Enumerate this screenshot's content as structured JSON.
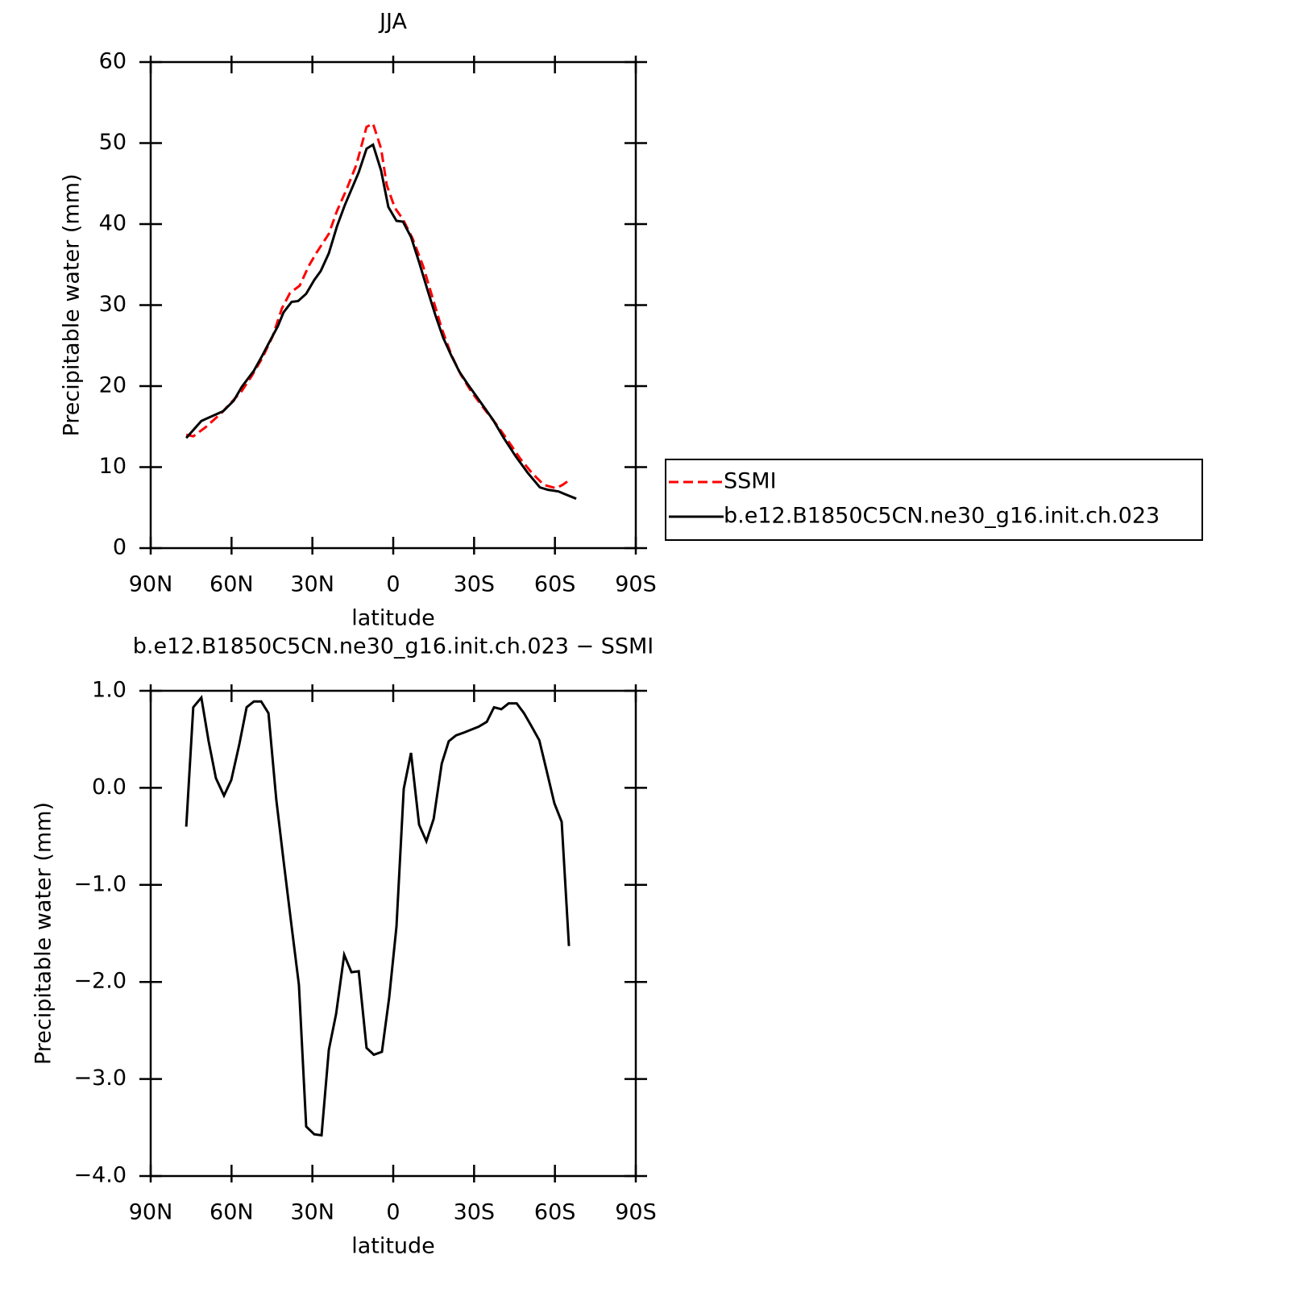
{
  "chart_data": [
    {
      "type": "line",
      "title": "JJA",
      "xlabel": "latitude",
      "ylabel": "Precipitable water (mm)",
      "xlim": [
        90,
        -90
      ],
      "xticks": [
        {
          "value": 90,
          "label": "90N"
        },
        {
          "value": 60,
          "label": "60N"
        },
        {
          "value": 30,
          "label": "30N"
        },
        0,
        {
          "value": -30,
          "label": "30S"
        },
        {
          "value": -60,
          "label": "60S"
        },
        {
          "value": -90,
          "label": "90S"
        }
      ],
      "ylim": [
        0,
        60
      ],
      "yticks": [
        0,
        10,
        20,
        30,
        40,
        50,
        60
      ],
      "legend": "right",
      "series": [
        {
          "name": "SSMI",
          "color": "#ff0000",
          "linestyle": "dashed",
          "x": [
            76.8,
            74.2,
            69.7,
            63.7,
            59.8,
            56.2,
            52.6,
            48.7,
            44.8,
            41.3,
            38.3,
            34.7,
            31.4,
            28.4,
            23.9,
            20.9,
            17.3,
            13.7,
            9.9,
            7.5,
            4.5,
            2.4,
            -0.6,
            -3.6,
            -7.2,
            -11.1,
            -14.7,
            -18.0,
            -21.5,
            -25.1,
            -29.0,
            -33.5,
            -38.0,
            -42.5,
            -47.0,
            -51.4,
            -55.9,
            -60.4,
            -62.8,
            -65.8
          ],
          "values": [
            14.0,
            13.8,
            14.9,
            16.7,
            18.1,
            19.4,
            21.2,
            23.4,
            26.1,
            29.6,
            31.5,
            32.4,
            34.8,
            36.5,
            38.8,
            41.6,
            44.3,
            47.3,
            52.0,
            52.4,
            49.3,
            44.8,
            42.0,
            40.6,
            38.2,
            34.8,
            30.8,
            27.1,
            23.9,
            21.4,
            19.3,
            17.3,
            15.4,
            13.3,
            11.1,
            9.3,
            7.8,
            7.4,
            7.8,
            8.5
          ]
        },
        {
          "name": "b.e12.B1850C5CN.ne30_g16.init.ch.023",
          "color": "#000000",
          "linestyle": "solid",
          "x": [
            76.8,
            71.2,
            63.1,
            59.2,
            56.2,
            51.7,
            48.7,
            45.7,
            42.8,
            40.7,
            37.7,
            35.3,
            32.3,
            29.3,
            26.9,
            23.9,
            20.9,
            17.9,
            12.8,
            9.9,
            7.5,
            4.5,
            1.8,
            -1.2,
            -3.6,
            -6.6,
            -9.6,
            -12.6,
            -15.6,
            -18.5,
            -21.5,
            -24.5,
            -27.5,
            -30.5,
            -33.5,
            -37.1,
            -41.0,
            -45.5,
            -49.9,
            -54.4,
            -57.4,
            -61.3,
            -63.4,
            -67.9
          ],
          "values": [
            13.6,
            15.7,
            16.9,
            18.2,
            19.9,
            21.9,
            23.7,
            25.6,
            27.4,
            29.1,
            30.4,
            30.5,
            31.4,
            33.1,
            34.2,
            36.4,
            39.7,
            42.4,
            46.4,
            49.3,
            49.8,
            46.6,
            42.1,
            40.4,
            40.3,
            38.4,
            35.3,
            32.0,
            28.8,
            26.0,
            23.8,
            21.8,
            20.3,
            18.9,
            17.5,
            15.8,
            13.6,
            11.3,
            9.3,
            7.5,
            7.2,
            7.0,
            6.7,
            6.1
          ]
        }
      ]
    },
    {
      "type": "line",
      "title": "b.e12.B1850C5CN.ne30_g16.init.ch.023 − SSMI",
      "xlabel": "latitude",
      "ylabel": "Precipitable water (mm)",
      "xlim": [
        90,
        -90
      ],
      "xticks": [
        {
          "value": 90,
          "label": "90N"
        },
        {
          "value": 60,
          "label": "60N"
        },
        {
          "value": 30,
          "label": "30N"
        },
        0,
        {
          "value": -30,
          "label": "30S"
        },
        {
          "value": -60,
          "label": "60S"
        },
        {
          "value": -90,
          "label": "90S"
        }
      ],
      "ylim": [
        -4,
        1
      ],
      "yticks": [
        {
          "value": -4,
          "label": "−4.0"
        },
        {
          "value": -3,
          "label": "−3.0"
        },
        {
          "value": -2,
          "label": "−2.0"
        },
        {
          "value": -1,
          "label": "−1.0"
        },
        {
          "value": 0,
          "label": "0.0"
        },
        {
          "value": 1,
          "label": "1.0"
        }
      ],
      "series": [
        {
          "color": "#000000",
          "linestyle": "solid",
          "x": [
            76.8,
            74.2,
            71.2,
            68.5,
            65.8,
            62.8,
            60.1,
            57.1,
            54.4,
            51.7,
            49.0,
            46.3,
            43.4,
            40.7,
            37.7,
            35.0,
            32.3,
            29.3,
            26.6,
            23.9,
            21.2,
            18.2,
            15.5,
            12.8,
            9.9,
            7.2,
            4.2,
            1.5,
            -1.2,
            -3.9,
            -6.6,
            -9.6,
            -12.3,
            -15.0,
            -18.0,
            -20.6,
            -23.3,
            -26.3,
            -29.0,
            -31.7,
            -34.7,
            -37.4,
            -40.1,
            -42.8,
            -45.8,
            -48.5,
            -51.2,
            -54.2,
            -56.8,
            -59.8,
            -62.5,
            -65.2
          ],
          "values": [
            -0.4,
            0.83,
            0.93,
            0.48,
            0.1,
            -0.08,
            0.08,
            0.45,
            0.83,
            0.89,
            0.89,
            0.77,
            -0.12,
            -0.75,
            -1.43,
            -2.03,
            -3.49,
            -3.57,
            -3.58,
            -2.7,
            -2.33,
            -1.72,
            -1.9,
            -1.89,
            -2.68,
            -2.75,
            -2.72,
            -2.16,
            -1.43,
            -0.01,
            0.36,
            -0.38,
            -0.55,
            -0.32,
            0.25,
            0.48,
            0.54,
            0.57,
            0.6,
            0.63,
            0.68,
            0.83,
            0.81,
            0.87,
            0.87,
            0.77,
            0.64,
            0.49,
            0.19,
            -0.16,
            -0.35,
            -1.63
          ]
        }
      ]
    }
  ]
}
